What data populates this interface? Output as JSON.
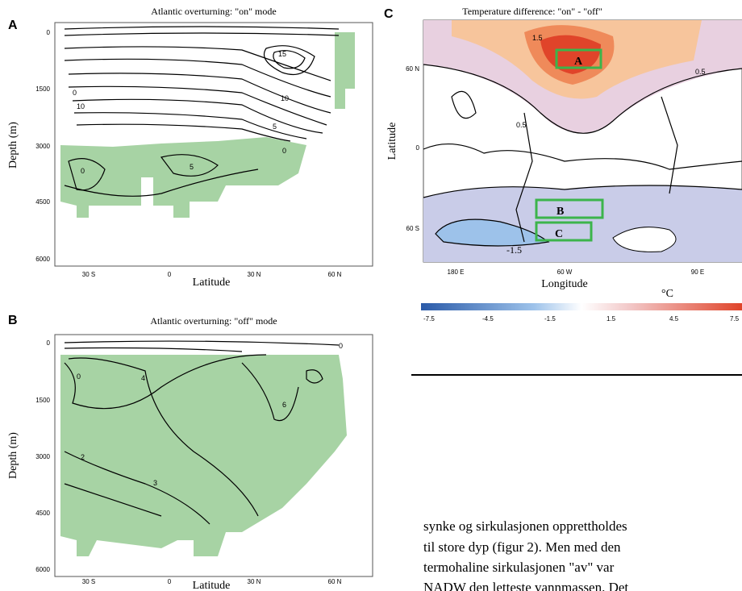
{
  "panel_a": {
    "label": "A",
    "title": "Atlantic overturning: \"on\" mode",
    "y_axis": "Depth (m)",
    "x_axis": "Latitude",
    "yticks": [
      "0",
      "1500",
      "3000",
      "4500",
      "6000"
    ],
    "xticks": [
      "30 S",
      "0",
      "30 N",
      "60 N"
    ],
    "contour_labels": [
      "0",
      "10",
      "15",
      "10",
      "5",
      "0",
      "5",
      "0"
    ]
  },
  "panel_b": {
    "label": "B",
    "title": "Atlantic overturning: \"off\" mode",
    "y_axis": "Depth (m)",
    "x_axis": "Latitude",
    "yticks": [
      "0",
      "1500",
      "3000",
      "4500",
      "6000"
    ],
    "xticks": [
      "30 S",
      "0",
      "30 N",
      "60 N"
    ],
    "contour_labels": [
      "0",
      "4",
      "6",
      "2",
      "3",
      "0"
    ]
  },
  "panel_c": {
    "label": "C",
    "title": "Temperature difference: \"on\" - \"off\"",
    "y_axis": "Latitude",
    "x_axis": "Longitude",
    "unit": "°C",
    "yticks": [
      "60 N",
      "0",
      "60 S"
    ],
    "xticks": [
      "180 E",
      "60 W",
      "90 E"
    ],
    "box_labels": [
      "A",
      "B",
      "C"
    ],
    "contour_labels": [
      "1.5",
      "0.5",
      "0.5",
      "-1.5"
    ],
    "colorbar_ticks": [
      "-7.5",
      "-4.5",
      "-1.5",
      "1.5",
      "4.5",
      "7.5"
    ]
  },
  "text": {
    "lines": [
      "synke og sirkulasjonen opprettholdes",
      "til store dyp (figur 2). Men med den",
      "termohaline sirkulasjonen \"av\" var",
      "NADW den letteste vannmassen. Det"
    ]
  }
}
